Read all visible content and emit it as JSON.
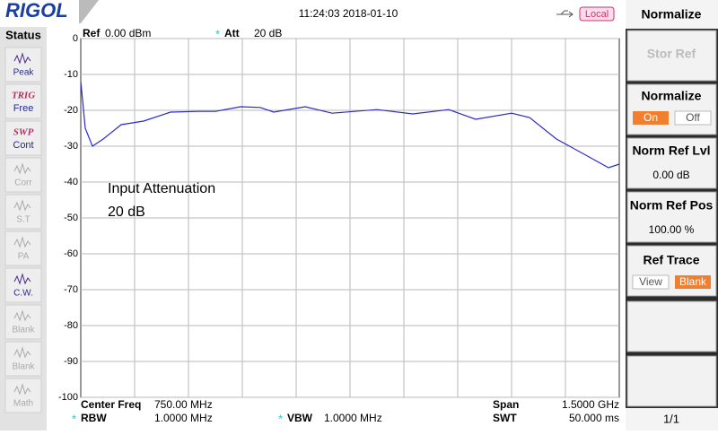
{
  "header": {
    "logo": "RIGOL",
    "datetime": "11:24:03 2018-01-10",
    "remote": "Local"
  },
  "status": {
    "title": "Status",
    "items": [
      {
        "top": "Peak"
      },
      {
        "top": "TRIG",
        "bottom": "Free"
      },
      {
        "top": "SWP",
        "bottom": "Cont"
      },
      {
        "top": "Corr"
      },
      {
        "top": "S.T"
      },
      {
        "top": "PA"
      },
      {
        "top": "C.W."
      },
      {
        "top": "Blank"
      },
      {
        "top": "Blank"
      },
      {
        "top": "Math"
      }
    ]
  },
  "info": {
    "ref_label": "Ref",
    "ref_value": "0.00 dBm",
    "att_marker": "*",
    "att_label": "Att",
    "att_value": "20 dB"
  },
  "chart_data": {
    "type": "line",
    "annotation": [
      "Input Attenuation",
      "20 dB"
    ],
    "xlim": [
      0,
      1500
    ],
    "ylim": [
      -100,
      0
    ],
    "yticks": [
      0,
      -10,
      -20,
      -30,
      -40,
      -50,
      -60,
      -70,
      -80,
      -90,
      -100
    ],
    "grid": true,
    "x_divisions": 10,
    "series": [
      {
        "color": "#2a2ac8",
        "x": [
          0,
          12.5,
          32.5,
          62.5,
          112.5,
          175,
          250,
          325,
          375,
          445,
          500,
          537.5,
          625,
          700,
          825,
          925,
          1025,
          1100,
          1200,
          1250,
          1325,
          1425,
          1470,
          1500
        ],
        "values": [
          -12,
          -25,
          -30,
          -28,
          -24,
          -23,
          -20.5,
          -20.3,
          -20.3,
          -19,
          -19.2,
          -20.5,
          -19,
          -20.8,
          -19.8,
          -21,
          -19.8,
          -22.5,
          -20.8,
          -22,
          -28,
          -33.5,
          -36,
          -35
        ]
      }
    ]
  },
  "footer": {
    "center_label": "Center Freq",
    "center_value": "750.00 MHz",
    "span_label": "Span",
    "span_value": "1.5000 GHz",
    "rbw_marker": "*",
    "rbw_label": "RBW",
    "rbw_value": "1.0000 MHz",
    "vbw_marker": "*",
    "vbw_label": "VBW",
    "vbw_value": "1.0000 MHz",
    "swt_label": "SWT",
    "swt_value": "50.000 ms"
  },
  "menu": {
    "title": "Normalize",
    "stor_ref": "Stor Ref",
    "normalize": "Normalize",
    "on": "On",
    "off": "Off",
    "norm_ref_lvl": "Norm Ref Lvl",
    "norm_ref_lvl_value": "0.00 dB",
    "norm_ref_pos": "Norm Ref Pos",
    "norm_ref_pos_value": "100.00 %",
    "ref_trace": "Ref Trace",
    "view": "View",
    "blank": "Blank",
    "page": "1/1"
  }
}
